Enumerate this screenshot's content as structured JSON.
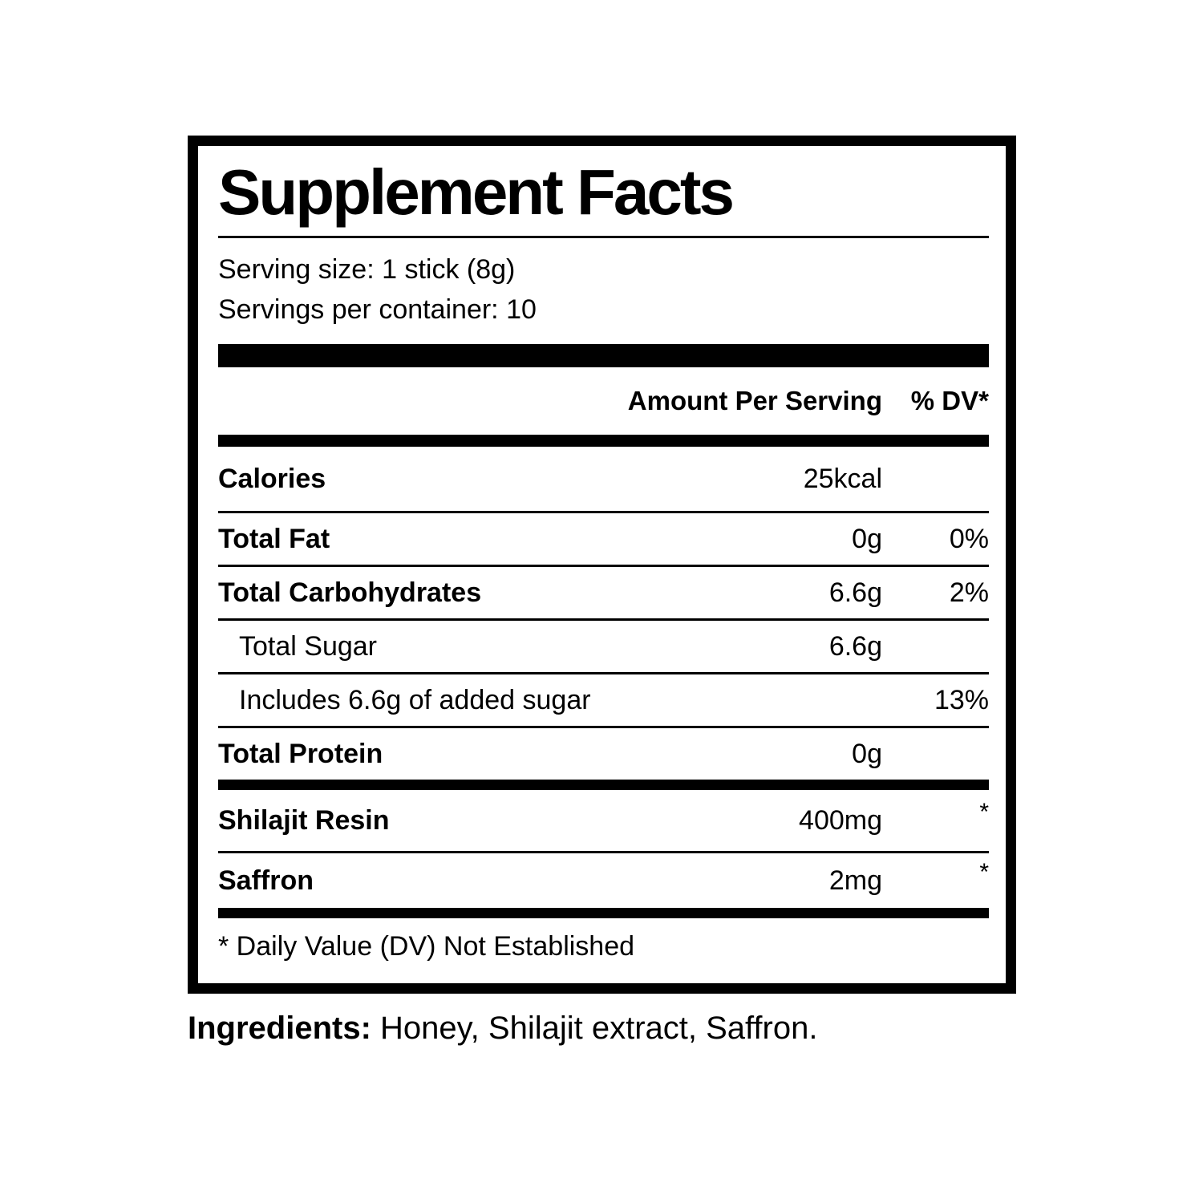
{
  "panel": {
    "title": "Supplement Facts",
    "serving_size": "Serving size: 1 stick (8g)",
    "servings_per_container": "Servings per container: 10",
    "header": {
      "amount": "Amount Per Serving",
      "dv": "% DV*"
    },
    "rows": [
      {
        "label": "Calories",
        "amount": "25kcal",
        "dv": ""
      },
      {
        "label": "Total Fat",
        "amount": "0g",
        "dv": "0%"
      },
      {
        "label": "Total Carbohydrates",
        "amount": "6.6g",
        "dv": "2%"
      },
      {
        "label": "Total Sugar",
        "amount": "6.6g",
        "dv": ""
      },
      {
        "label": "Includes 6.6g of added sugar",
        "amount": "",
        "dv": "13%"
      },
      {
        "label": "Total Protein",
        "amount": "0g",
        "dv": ""
      }
    ],
    "supplement_rows": [
      {
        "label": "Shilajit Resin",
        "amount": "400mg",
        "dv": "*"
      },
      {
        "label": "Saffron",
        "amount": "2mg",
        "dv": "*"
      }
    ],
    "footnote": "* Daily Value (DV) Not Established"
  },
  "ingredients": {
    "label": "Ingredients:",
    "text": " Honey, Shilajit extract, Saffron."
  },
  "colors": {
    "ink": "#000000",
    "background": "#ffffff"
  }
}
